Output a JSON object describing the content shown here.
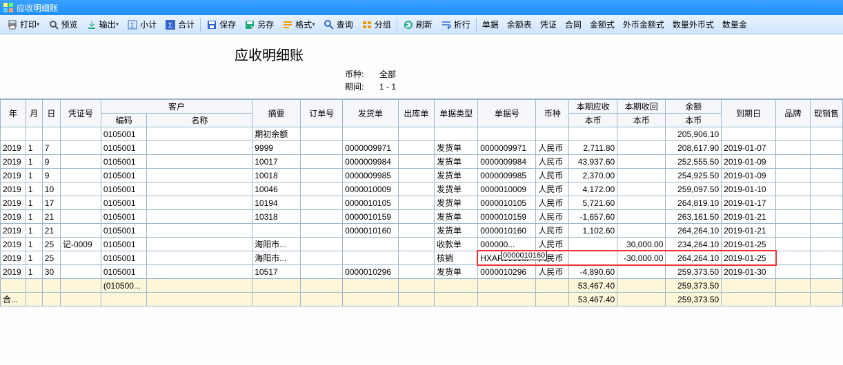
{
  "window": {
    "title": "应收明细账"
  },
  "toolbar": {
    "items": [
      {
        "label": "打印",
        "icon": "printer",
        "dd": true
      },
      {
        "label": "预览",
        "icon": "preview"
      },
      {
        "label": "输出",
        "icon": "export",
        "dd": true
      },
      {
        "label": "小计",
        "icon": "subtotal"
      },
      {
        "label": "合计",
        "icon": "sum",
        "active": true
      },
      {
        "sep": true
      },
      {
        "label": "保存",
        "icon": "save"
      },
      {
        "label": "另存",
        "icon": "saveas"
      },
      {
        "label": "格式",
        "icon": "format",
        "dd": true
      },
      {
        "label": "查询",
        "icon": "search"
      },
      {
        "label": "分组",
        "icon": "group"
      },
      {
        "sep": true
      },
      {
        "label": "刷新",
        "icon": "refresh"
      },
      {
        "label": "折行",
        "icon": "wrap"
      },
      {
        "sep": true
      },
      {
        "label": "单据",
        "icon": ""
      },
      {
        "label": "余额表",
        "icon": ""
      },
      {
        "label": "凭证",
        "icon": ""
      },
      {
        "label": "合同",
        "icon": ""
      },
      {
        "label": "金额式",
        "icon": ""
      },
      {
        "label": "外币金额式",
        "icon": ""
      },
      {
        "label": "数量外币式",
        "icon": ""
      },
      {
        "label": "数量金",
        "icon": ""
      }
    ]
  },
  "report": {
    "title": "应收明细账",
    "meta": [
      {
        "label": "币种:",
        "value": "全部"
      },
      {
        "label": "期间:",
        "value": "1   -   1"
      }
    ]
  },
  "columns": {
    "year": "年",
    "month": "月",
    "day": "日",
    "voucher": "凭证号",
    "customer": "客户",
    "custcode": "编码",
    "custname": "名称",
    "summary": "摘要",
    "order": "订单号",
    "ship": "发货单",
    "out": "出库单",
    "billtype": "单据类型",
    "billno": "单据号",
    "currency": "币种",
    "due": "本期应收",
    "due2": "本币",
    "recv": "本期收回",
    "recv2": "本币",
    "bal": "余额",
    "bal2": "本币",
    "matdate": "到期日",
    "brand": "品牌",
    "sale": "现销售"
  },
  "rows": [
    {
      "year": "",
      "month": "",
      "day": "",
      "voucher": "",
      "code": "0105001",
      "name": "",
      "summary": "期初余额",
      "order": "",
      "ship": "",
      "out": "",
      "btype": "",
      "bno": "",
      "curr": "",
      "due": "",
      "recv": "",
      "bal": "205,906.10",
      "mdate": "",
      "brand": ""
    },
    {
      "year": "2019",
      "month": "1",
      "day": "7",
      "voucher": "",
      "code": "0105001",
      "name": "",
      "summary": "9999",
      "order": "",
      "ship": "0000009971",
      "out": "",
      "btype": "发货单",
      "bno": "0000009971",
      "curr": "人民币",
      "due": "2,711.80",
      "recv": "",
      "bal": "208,617.90",
      "mdate": "2019-01-07",
      "brand": ""
    },
    {
      "year": "2019",
      "month": "1",
      "day": "9",
      "voucher": "",
      "code": "0105001",
      "name": "",
      "summary": "10017",
      "order": "",
      "ship": "0000009984",
      "out": "",
      "btype": "发货单",
      "bno": "0000009984",
      "curr": "人民币",
      "due": "43,937.60",
      "recv": "",
      "bal": "252,555.50",
      "mdate": "2019-01-09",
      "brand": ""
    },
    {
      "year": "2019",
      "month": "1",
      "day": "9",
      "voucher": "",
      "code": "0105001",
      "name": "",
      "summary": "10018",
      "order": "",
      "ship": "0000009985",
      "out": "",
      "btype": "发货单",
      "bno": "0000009985",
      "curr": "人民币",
      "due": "2,370.00",
      "recv": "",
      "bal": "254,925.50",
      "mdate": "2019-01-09",
      "brand": ""
    },
    {
      "year": "2019",
      "month": "1",
      "day": "10",
      "voucher": "",
      "code": "0105001",
      "name": "",
      "summary": "10046",
      "order": "",
      "ship": "0000010009",
      "out": "",
      "btype": "发货单",
      "bno": "0000010009",
      "curr": "人民币",
      "due": "4,172.00",
      "recv": "",
      "bal": "259,097.50",
      "mdate": "2019-01-10",
      "brand": ""
    },
    {
      "year": "2019",
      "month": "1",
      "day": "17",
      "voucher": "",
      "code": "0105001",
      "name": "",
      "summary": "10194",
      "order": "",
      "ship": "0000010105",
      "out": "",
      "btype": "发货单",
      "bno": "0000010105",
      "curr": "人民币",
      "due": "5,721.60",
      "recv": "",
      "bal": "264,819.10",
      "mdate": "2019-01-17",
      "brand": ""
    },
    {
      "year": "2019",
      "month": "1",
      "day": "21",
      "voucher": "",
      "code": "0105001",
      "name": "",
      "summary": "10318",
      "order": "",
      "ship": "0000010159",
      "out": "",
      "btype": "发货单",
      "bno": "0000010159",
      "curr": "人民币",
      "due": "-1,657.60",
      "recv": "",
      "bal": "263,161.50",
      "mdate": "2019-01-21",
      "brand": ""
    },
    {
      "year": "2019",
      "month": "1",
      "day": "21",
      "voucher": "",
      "code": "0105001",
      "name": "",
      "summary": "",
      "order": "",
      "ship": "0000010160",
      "out": "",
      "btype": "发货单",
      "bno": "0000010160",
      "curr": "人民币",
      "due": "1,102.60",
      "recv": "",
      "bal": "264,264.10",
      "mdate": "2019-01-21",
      "brand": ""
    },
    {
      "year": "2019",
      "month": "1",
      "day": "25",
      "voucher": "记-0009",
      "code": "0105001",
      "name": "",
      "summary": "海阳市...",
      "order": "",
      "ship": "",
      "out": "",
      "btype": "收款单",
      "bno": "000000...",
      "curr": "人民币",
      "due": "",
      "recv": "30,000.00",
      "bal": "234,264.10",
      "mdate": "2019-01-25",
      "brand": ""
    },
    {
      "year": "2019",
      "month": "1",
      "day": "25",
      "voucher": "",
      "code": "0105001",
      "name": "",
      "summary": "海阳市...",
      "order": "",
      "ship": "",
      "out": "",
      "btype": "核销",
      "bno": "HXAR0000...",
      "curr": "人民币",
      "due": "",
      "recv": "-30,000.00",
      "bal": "264,264.10",
      "mdate": "2019-01-25",
      "brand": "",
      "hl": true
    },
    {
      "year": "2019",
      "month": "1",
      "day": "30",
      "voucher": "",
      "code": "0105001",
      "name": "",
      "summary": "10517",
      "order": "",
      "ship": "0000010296",
      "out": "",
      "btype": "发货单",
      "bno": "0000010296",
      "curr": "人民币",
      "due": "-4,890.60",
      "recv": "",
      "bal": "259,373.50",
      "mdate": "2019-01-30",
      "brand": ""
    },
    {
      "total": true,
      "year": "",
      "month": "",
      "day": "",
      "voucher": "",
      "code": "(010500...",
      "name": "",
      "summary": "",
      "order": "",
      "ship": "",
      "out": "",
      "btype": "",
      "bno": "",
      "curr": "",
      "due": "53,467.40",
      "recv": "",
      "bal": "259,373.50",
      "mdate": "",
      "brand": ""
    },
    {
      "total": true,
      "year": "合...",
      "month": "",
      "day": "",
      "voucher": "",
      "code": "",
      "name": "",
      "summary": "",
      "order": "",
      "ship": "",
      "out": "",
      "btype": "",
      "bno": "",
      "curr": "",
      "due": "53,467.40",
      "recv": "",
      "bal": "259,373.50",
      "mdate": "",
      "brand": ""
    }
  ],
  "tooltip": {
    "text": "0000010160"
  },
  "colors": {
    "titlebar": "#1e90ff",
    "toolbar_top": "#eaf3ff",
    "toolbar_bot": "#cfe4ff",
    "border": "#9db6cd",
    "total_bg": "#fdf6d9",
    "highlight": "#e33"
  }
}
